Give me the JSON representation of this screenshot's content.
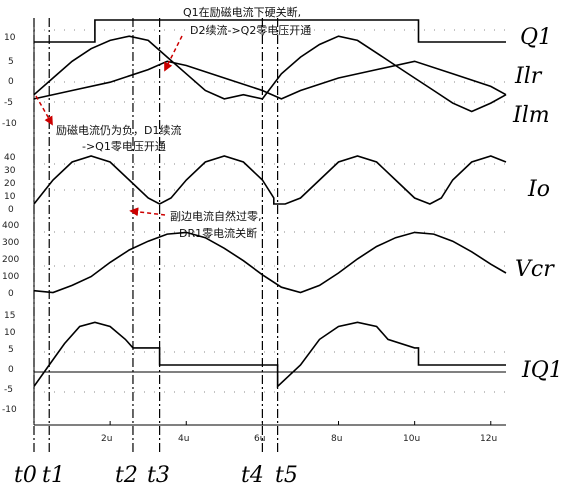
{
  "chart_data": [
    {
      "type": "line",
      "name": "Q1",
      "series": [
        {
          "name": "Q1",
          "x": [
            0,
            1.6,
            1.6,
            10.1,
            10.1,
            12.4
          ],
          "y": [
            0,
            0,
            1,
            1,
            0,
            0
          ]
        }
      ]
    },
    {
      "type": "line",
      "ylim": [
        -11,
        11
      ],
      "yticks": [
        10,
        5,
        0,
        -5,
        -10
      ],
      "series": [
        {
          "name": "Ilr",
          "x": [
            0,
            0.5,
            1,
            1.5,
            2,
            2.5,
            3,
            3.5,
            4,
            4.5,
            5,
            5.5,
            6,
            6.5,
            7,
            7.5,
            8,
            8.5,
            9,
            9.5,
            10,
            10.5,
            11,
            11.5,
            12,
            12.4
          ],
          "y": [
            -4,
            0,
            4,
            7,
            9,
            10,
            9,
            5,
            1,
            -3,
            -5,
            -4,
            -5,
            1,
            5,
            8,
            10,
            9,
            6,
            3,
            0,
            -3,
            -6,
            -8,
            -6,
            -4
          ]
        },
        {
          "name": "Ilm",
          "x": [
            0,
            1,
            2,
            3,
            3.5,
            4,
            5,
            6,
            6.5,
            7,
            8,
            9,
            10,
            11,
            12,
            12.4
          ],
          "y": [
            -5,
            -3,
            -1,
            2,
            4,
            3,
            0,
            -3,
            -5,
            -3,
            0,
            2,
            4,
            1,
            -2,
            -4
          ]
        }
      ]
    },
    {
      "type": "line",
      "ylim": [
        -5,
        45
      ],
      "yticks": [
        40,
        30,
        20,
        10,
        0
      ],
      "series": [
        {
          "name": "Io",
          "x": [
            0,
            0.5,
            1,
            1.5,
            2,
            2.5,
            3,
            3.3,
            3.3,
            3.6,
            4,
            4.5,
            5,
            5.5,
            6,
            6.3,
            6.3,
            6.6,
            7,
            7.5,
            8,
            8.5,
            9,
            9.5,
            10,
            10.4,
            10.4,
            10.7,
            11,
            11.5,
            12,
            12.4
          ],
          "y": [
            0,
            20,
            35,
            40,
            35,
            20,
            5,
            0,
            0,
            5,
            20,
            35,
            40,
            35,
            20,
            5,
            0,
            0,
            5,
            20,
            35,
            40,
            35,
            20,
            5,
            0,
            0,
            5,
            20,
            35,
            40,
            35
          ]
        }
      ]
    },
    {
      "type": "line",
      "ylim": [
        -10,
        420
      ],
      "yticks": [
        400,
        300,
        200,
        100,
        0
      ],
      "series": [
        {
          "name": "Vcr",
          "x": [
            0,
            0.5,
            1,
            1.5,
            2,
            2.5,
            3,
            3.5,
            4,
            4.5,
            5,
            5.5,
            6,
            6.5,
            7,
            7.5,
            8,
            8.5,
            9,
            9.5,
            10,
            10.5,
            11,
            11.5,
            12,
            12.4
          ],
          "y": [
            20,
            10,
            50,
            100,
            180,
            250,
            300,
            340,
            350,
            320,
            260,
            190,
            110,
            40,
            10,
            50,
            120,
            200,
            270,
            320,
            350,
            340,
            300,
            240,
            170,
            120
          ]
        }
      ]
    },
    {
      "type": "line",
      "ylim": [
        -11,
        11
      ],
      "yticks": [
        10,
        5,
        0,
        -5,
        -10
      ],
      "xticks": [
        "2u",
        "4u",
        "6u",
        "8u",
        "10u",
        "12u"
      ],
      "series": [
        {
          "name": "IQ1",
          "x": [
            0,
            0.4,
            0.8,
            1.2,
            1.6,
            2,
            2.4,
            2.6,
            3,
            3.3,
            3.3,
            6.4,
            6.4,
            7,
            7.5,
            8,
            8.5,
            9,
            9.3,
            10,
            10.1,
            10.1,
            12.4
          ],
          "y": [
            -5,
            0,
            5,
            9,
            10,
            9,
            6,
            4,
            4,
            4,
            0,
            0,
            -5,
            0,
            6,
            9,
            10,
            9,
            6,
            4,
            4,
            0,
            0
          ]
        }
      ]
    }
  ],
  "labels": {
    "q1": "Q1",
    "ilr": "Ilr",
    "ilm": "Ilm",
    "io": "Io",
    "vcr": "Vcr",
    "iq1": "IQ1"
  },
  "ticks": {
    "p1": [
      "10",
      "5",
      "0",
      "-5",
      "-10"
    ],
    "p2": [
      "40",
      "30",
      "20",
      "10",
      "0"
    ],
    "p3": [
      "400",
      "300",
      "200",
      "100",
      "0"
    ],
    "p4": [
      "15",
      "10",
      "5",
      "0",
      "-5",
      "-10"
    ],
    "x": [
      "2u",
      "4u",
      "6u",
      "8u",
      "10u",
      "12u"
    ]
  },
  "time_markers": [
    "t0",
    "t1",
    "t2",
    "t3",
    "t4",
    "t5"
  ],
  "annotations": {
    "a1_line1": "Q1在励磁电流下硬关断,",
    "a1_line2": "D2续流->Q2零电压开通",
    "a2_line1": "励磁电流仍为负，D1续流",
    "a2_line2": "->Q1零电压开通",
    "a3_line1": "副边电流自然过零,",
    "a3_line2": "DR1零电流关断"
  },
  "colors": {
    "trace": "#000000",
    "ilm_trace": "#aaaaaa",
    "arrow": "#cc0000",
    "grid": "#888888"
  }
}
